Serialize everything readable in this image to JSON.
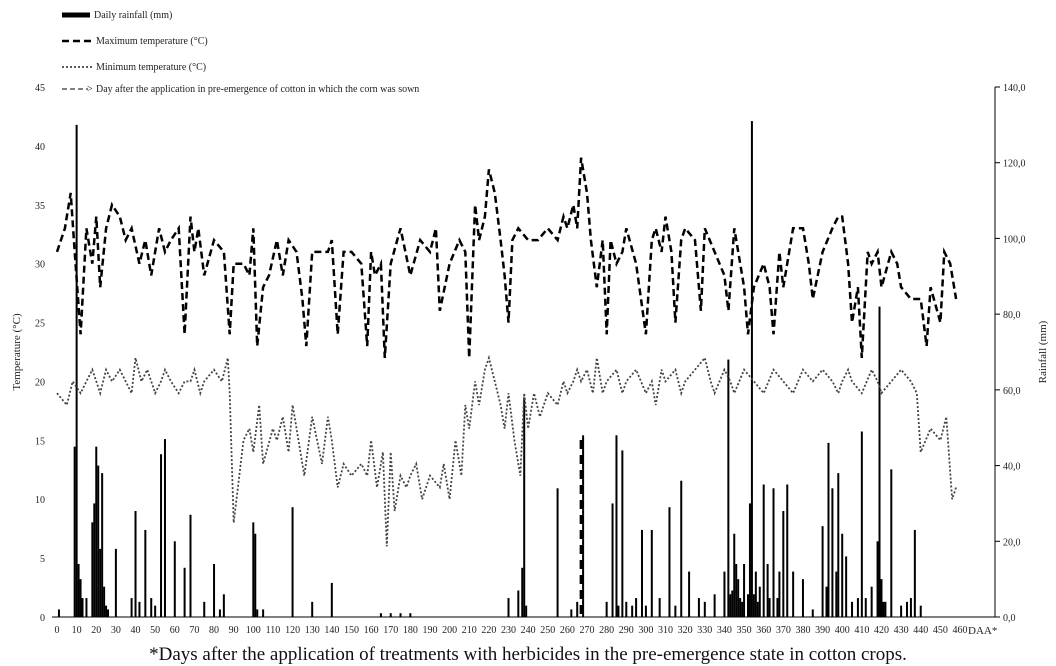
{
  "chart_data": {
    "type": "combo",
    "legend": [
      {
        "key": "rain",
        "label": "Daily rainfall (mm)"
      },
      {
        "key": "tmax",
        "label": "Maximum temperature (°C)"
      },
      {
        "key": "tmin",
        "label": "Minimum temperature (°C)"
      },
      {
        "key": "arrow",
        "label": "Day after the application in pre-emergence of cotton in which the corn was sown"
      }
    ],
    "y_left": {
      "label": "Temperature (°C)",
      "min": 0,
      "max": 45,
      "ticks": [
        "0",
        "5",
        "10",
        "15",
        "20",
        "25",
        "30",
        "35",
        "40",
        "45"
      ]
    },
    "y_right": {
      "label": "Rainfall (mm)",
      "min": 0,
      "max": 140,
      "ticks": [
        "0,0",
        "20,0",
        "40,0",
        "60,0",
        "80,0",
        "100,0",
        "120,0",
        "140,0"
      ]
    },
    "x": {
      "label": "DAA*",
      "min": 0,
      "max": 460,
      "ticks": [
        "0",
        "10",
        "20",
        "30",
        "40",
        "50",
        "60",
        "70",
        "80",
        "90",
        "100",
        "110",
        "120",
        "130",
        "140",
        "150",
        "160",
        "170",
        "180",
        "190",
        "200",
        "210",
        "220",
        "230",
        "240",
        "250",
        "260",
        "270",
        "280",
        "290",
        "300",
        "310",
        "320",
        "330",
        "340",
        "350",
        "360",
        "370",
        "380",
        "390",
        "400",
        "410",
        "420",
        "430",
        "440",
        "450",
        "460"
      ]
    },
    "corn_sowing_day": 267,
    "caption": "*Days after the application of treatments with herbicides in the pre-emergence state in cotton crops.",
    "series": {
      "tmax": {
        "name": "Maximum temperature (°C)",
        "x": [
          0,
          4,
          7,
          9,
          12,
          15,
          18,
          20,
          22,
          25,
          28,
          32,
          35,
          38,
          42,
          45,
          48,
          52,
          55,
          58,
          62,
          65,
          68,
          70,
          72,
          75,
          80,
          85,
          88,
          90,
          95,
          98,
          100,
          102,
          105,
          108,
          112,
          115,
          118,
          122,
          125,
          127,
          130,
          135,
          138,
          140,
          143,
          146,
          150,
          155,
          158,
          160,
          162,
          165,
          167,
          170,
          175,
          180,
          185,
          190,
          193,
          195,
          200,
          205,
          208,
          210,
          213,
          215,
          218,
          220,
          223,
          226,
          228,
          230,
          232,
          235,
          240,
          245,
          250,
          255,
          258,
          260,
          263,
          265,
          267,
          270,
          272,
          275,
          278,
          280,
          282,
          285,
          288,
          290,
          295,
          300,
          303,
          305,
          308,
          310,
          313,
          315,
          318,
          320,
          325,
          328,
          330,
          335,
          340,
          342,
          345,
          350,
          352,
          355,
          360,
          363,
          365,
          368,
          370,
          375,
          380,
          383,
          385,
          390,
          395,
          398,
          400,
          403,
          405,
          408,
          410,
          413,
          415,
          418,
          420,
          425,
          428,
          430,
          435,
          440,
          443,
          445,
          450,
          452,
          455,
          458
        ],
        "y": [
          31,
          33,
          36,
          31,
          24,
          33,
          30,
          34,
          28,
          33,
          35,
          34,
          32,
          33,
          30,
          32,
          29,
          33,
          31,
          32,
          33,
          24,
          34,
          31,
          33,
          29,
          32,
          31,
          24,
          30,
          30,
          29,
          33,
          23,
          28,
          29,
          32,
          29,
          32,
          31,
          27,
          23,
          31,
          31,
          31,
          32,
          24,
          31,
          31,
          30,
          23,
          31,
          29,
          30,
          22,
          30,
          33,
          29,
          32,
          31,
          33,
          26,
          30,
          32,
          31,
          22,
          35,
          32,
          34,
          38,
          36,
          32,
          29,
          25,
          32,
          33,
          32,
          32,
          33,
          32,
          34,
          33,
          35,
          33,
          39,
          36,
          32,
          28,
          32,
          24,
          32,
          30,
          31,
          33,
          30,
          24,
          32,
          33,
          31,
          34,
          31,
          25,
          32,
          33,
          32,
          26,
          33,
          31,
          29,
          26,
          33,
          28,
          24,
          28,
          30,
          28,
          24,
          31,
          28,
          33,
          33,
          30,
          27,
          31,
          33,
          34,
          34,
          30,
          25,
          28,
          22,
          31,
          30,
          31,
          28,
          31,
          30,
          28,
          27,
          27,
          23,
          28,
          25,
          31,
          30,
          27
        ],
        "stroke": "#000000"
      },
      "tmin": {
        "name": "Minimum temperature (°C)",
        "x": [
          0,
          5,
          8,
          12,
          15,
          18,
          20,
          22,
          25,
          28,
          32,
          35,
          38,
          40,
          43,
          46,
          50,
          53,
          55,
          58,
          62,
          65,
          68,
          70,
          73,
          75,
          80,
          84,
          87,
          88,
          90,
          95,
          98,
          100,
          103,
          105,
          110,
          112,
          115,
          118,
          120,
          123,
          126,
          130,
          135,
          138,
          140,
          143,
          146,
          150,
          155,
          158,
          160,
          163,
          166,
          168,
          170,
          172,
          175,
          178,
          180,
          183,
          186,
          190,
          195,
          197,
          200,
          203,
          206,
          208,
          210,
          213,
          215,
          218,
          220,
          223,
          226,
          228,
          230,
          233,
          236,
          238,
          240,
          243,
          246,
          250,
          255,
          258,
          260,
          263,
          265,
          267,
          270,
          273,
          275,
          278,
          280,
          285,
          288,
          290,
          295,
          300,
          303,
          305,
          308,
          310,
          315,
          318,
          320,
          325,
          330,
          333,
          335,
          340,
          343,
          345,
          350,
          355,
          360,
          365,
          370,
          375,
          380,
          385,
          390,
          395,
          398,
          400,
          403,
          405,
          410,
          415,
          418,
          420,
          425,
          430,
          435,
          438,
          440,
          445,
          450,
          453,
          456,
          458
        ],
        "y": [
          19,
          18,
          20,
          19,
          20,
          21,
          20,
          19,
          21,
          20,
          21,
          20,
          19,
          22,
          20,
          21,
          19,
          20,
          21,
          20,
          19,
          20,
          20,
          21,
          19,
          20,
          21,
          20,
          22,
          19,
          8,
          15,
          16,
          14,
          18,
          13,
          16,
          15,
          17,
          14,
          18,
          15,
          12,
          17,
          13,
          17,
          15,
          11,
          13,
          12,
          13,
          12,
          15,
          11,
          14,
          6,
          14,
          9,
          12,
          11,
          12,
          13,
          10,
          12,
          11,
          13,
          10,
          15,
          12,
          18,
          16,
          20,
          18,
          21,
          22,
          20,
          18,
          16,
          19,
          15,
          12,
          19,
          16,
          19,
          17,
          19,
          18,
          20,
          19,
          20,
          21,
          20,
          21,
          19,
          22,
          19,
          20,
          21,
          19,
          20,
          21,
          19,
          20,
          18,
          21,
          20,
          21,
          19,
          20,
          21,
          22,
          20,
          19,
          21,
          20,
          19,
          21,
          20,
          19,
          21,
          20,
          19,
          21,
          20,
          21,
          20,
          19,
          20,
          21,
          20,
          19,
          21,
          20,
          19,
          20,
          21,
          20,
          19,
          14,
          16,
          15,
          17,
          10,
          11
        ],
        "stroke": "#444444"
      },
      "rain": {
        "name": "Daily rainfall (mm)",
        "x": [
          1,
          9,
          10,
          11,
          12,
          13,
          15,
          18,
          19,
          20,
          21,
          22,
          23,
          24,
          25,
          26,
          30,
          38,
          40,
          42,
          45,
          48,
          50,
          53,
          55,
          60,
          65,
          68,
          75,
          80,
          83,
          85,
          100,
          101,
          102,
          105,
          120,
          130,
          140,
          165,
          170,
          175,
          180,
          230,
          235,
          237,
          238,
          239,
          255,
          262,
          265,
          268,
          280,
          283,
          285,
          286,
          288,
          290,
          293,
          295,
          298,
          300,
          303,
          307,
          312,
          315,
          318,
          322,
          327,
          330,
          335,
          340,
          342,
          343,
          344,
          345,
          346,
          347,
          348,
          349,
          350,
          352,
          353,
          354,
          355,
          356,
          357,
          358,
          360,
          362,
          363,
          365,
          367,
          368,
          370,
          372,
          375,
          380,
          385,
          390,
          392,
          393,
          395,
          397,
          398,
          400,
          402,
          405,
          408,
          410,
          412,
          415,
          418,
          419,
          420,
          421,
          422,
          425,
          430,
          433,
          435,
          437,
          440
        ],
        "y": [
          2,
          45,
          130,
          14,
          10,
          5,
          5,
          25,
          30,
          45,
          40,
          18,
          38,
          8,
          3,
          2,
          18,
          5,
          28,
          4,
          23,
          5,
          3,
          43,
          47,
          20,
          13,
          27,
          4,
          14,
          2,
          6,
          25,
          22,
          2,
          2,
          29,
          4,
          9,
          1,
          1,
          1,
          1,
          5,
          7,
          13,
          58,
          3,
          34,
          2,
          4,
          48,
          4,
          30,
          48,
          3,
          44,
          4,
          3,
          5,
          23,
          3,
          23,
          5,
          29,
          3,
          36,
          12,
          5,
          4,
          6,
          12,
          68,
          6,
          7,
          22,
          14,
          10,
          5,
          4,
          14,
          6,
          30,
          131,
          6,
          12,
          4,
          8,
          35,
          14,
          5,
          34,
          5,
          12,
          28,
          35,
          12,
          10,
          2,
          24,
          8,
          46,
          34,
          12,
          38,
          22,
          16,
          4,
          5,
          49,
          5,
          8,
          20,
          82,
          10,
          4,
          4,
          39,
          3,
          4,
          5,
          23,
          3
        ],
        "color": "#000000"
      }
    }
  }
}
